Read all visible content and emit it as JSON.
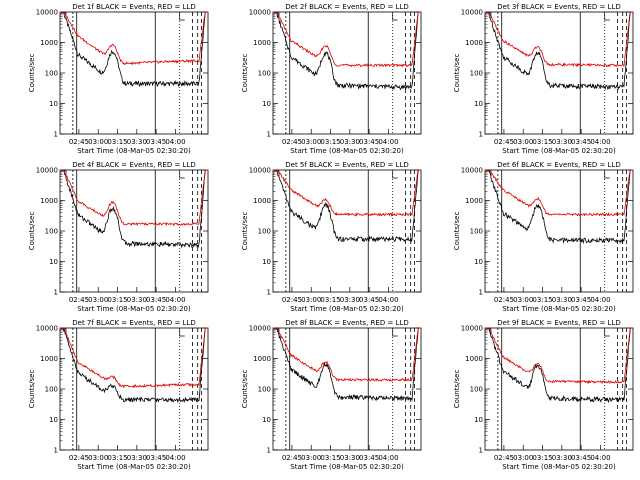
{
  "layout_note": "",
  "colors": {
    "events": "#000000",
    "lld": "#e00000",
    "axes": "#000000",
    "background": "#ffffff"
  },
  "chart_data": [
    {
      "type": "line",
      "title": "Det 1f BLACK = Events, RED = LLD",
      "xlabel": "Start Time (08-Mar-05 02:30:20)",
      "ylabel": "Counts/sec",
      "yscale": "log",
      "ylim": [
        1,
        10000
      ],
      "x_ticks": [
        "02:45",
        "03:00",
        "03:15",
        "03:30",
        "03:45",
        "04:00"
      ],
      "y_ticks": [
        "1",
        "10",
        "100",
        "1000",
        "10000"
      ],
      "series": [
        {
          "name": "Events",
          "color": "#000000",
          "profile": {
            "plateau": 80,
            "dip": 45,
            "peak": 500,
            "end": 45
          }
        },
        {
          "name": "LLD",
          "color": "#e00000",
          "profile": {
            "plateau": 330,
            "dip": 200,
            "peak": 800,
            "end": 250
          }
        }
      ]
    },
    {
      "type": "line",
      "title": "Det 2f BLACK = Events, RED = LLD",
      "xlabel": "Start Time (08-Mar-05 02:30:20)",
      "ylabel": "Counts/sec",
      "yscale": "log",
      "ylim": [
        1,
        10000
      ],
      "x_ticks": [
        "02:45",
        "03:00",
        "03:15",
        "03:30",
        "03:45",
        "04:00"
      ],
      "y_ticks": [
        "1",
        "10",
        "100",
        "1000",
        "10000"
      ],
      "series": [
        {
          "name": "Events",
          "color": "#000000",
          "profile": {
            "plateau": 70,
            "dip": 40,
            "peak": 450,
            "end": 35
          }
        },
        {
          "name": "LLD",
          "color": "#e00000",
          "profile": {
            "plateau": 230,
            "dip": 180,
            "peak": 750,
            "end": 180
          }
        }
      ]
    },
    {
      "type": "line",
      "title": "Det 3f BLACK = Events, RED = LLD",
      "xlabel": "Start Time (08-Mar-05 02:30:20)",
      "ylabel": "Counts/sec",
      "yscale": "log",
      "ylim": [
        1,
        10000
      ],
      "x_ticks": [
        "02:45",
        "03:00",
        "03:15",
        "03:30",
        "03:45",
        "04:00"
      ],
      "y_ticks": [
        "1",
        "10",
        "100",
        "1000",
        "10000"
      ],
      "series": [
        {
          "name": "Events",
          "color": "#000000",
          "profile": {
            "plateau": 70,
            "dip": 40,
            "peak": 450,
            "end": 35
          }
        },
        {
          "name": "LLD",
          "color": "#e00000",
          "profile": {
            "plateau": 230,
            "dip": 190,
            "peak": 700,
            "end": 180
          }
        }
      ]
    },
    {
      "type": "line",
      "title": "Det 4f BLACK = Events, RED = LLD",
      "xlabel": "Start Time (08-Mar-05 02:30:20)",
      "ylabel": "Counts/sec",
      "yscale": "log",
      "ylim": [
        1,
        10000
      ],
      "x_ticks": [
        "02:45",
        "03:00",
        "03:15",
        "03:30",
        "03:45",
        "04:00"
      ],
      "y_ticks": [
        "1",
        "10",
        "100",
        "1000",
        "10000"
      ],
      "series": [
        {
          "name": "Events",
          "color": "#000000",
          "profile": {
            "plateau": 70,
            "dip": 40,
            "peak": 550,
            "end": 35
          }
        },
        {
          "name": "LLD",
          "color": "#e00000",
          "profile": {
            "plateau": 190,
            "dip": 170,
            "peak": 850,
            "end": 170
          }
        }
      ]
    },
    {
      "type": "line",
      "title": "Det 5f BLACK = Events, RED = LLD",
      "xlabel": "Start Time (08-Mar-05 02:30:20)",
      "ylabel": "Counts/sec",
      "yscale": "log",
      "ylim": [
        1,
        10000
      ],
      "x_ticks": [
        "02:45",
        "03:00",
        "03:15",
        "03:30",
        "03:45",
        "04:00"
      ],
      "y_ticks": [
        "1",
        "10",
        "100",
        "1000",
        "10000"
      ],
      "series": [
        {
          "name": "Events",
          "color": "#000000",
          "profile": {
            "plateau": 90,
            "dip": 55,
            "peak": 700,
            "end": 55
          }
        },
        {
          "name": "LLD",
          "color": "#e00000",
          "profile": {
            "plateau": 450,
            "dip": 350,
            "peak": 1000,
            "end": 350
          }
        }
      ]
    },
    {
      "type": "line",
      "title": "Det 6f BLACK = Events, RED = LLD",
      "xlabel": "Start Time (08-Mar-05 02:30:20)",
      "ylabel": "Counts/sec",
      "yscale": "log",
      "ylim": [
        1,
        10000
      ],
      "x_ticks": [
        "02:45",
        "03:00",
        "03:15",
        "03:30",
        "03:45",
        "04:00"
      ],
      "y_ticks": [
        "1",
        "10",
        "100",
        "1000",
        "10000"
      ],
      "series": [
        {
          "name": "Events",
          "color": "#000000",
          "profile": {
            "plateau": 80,
            "dip": 50,
            "peak": 700,
            "end": 50
          }
        },
        {
          "name": "LLD",
          "color": "#e00000",
          "profile": {
            "plateau": 450,
            "dip": 350,
            "peak": 1100,
            "end": 350
          }
        }
      ]
    },
    {
      "type": "line",
      "title": "Det 7f BLACK = Events, RED = LLD",
      "xlabel": "Start Time (08-Mar-05 02:30:20)",
      "ylabel": "Counts/sec",
      "yscale": "log",
      "ylim": [
        1,
        10000
      ],
      "x_ticks": [
        "02:45",
        "03:00",
        "03:15",
        "03:30",
        "03:45",
        "04:00"
      ],
      "y_ticks": [
        "1",
        "10",
        "100",
        "1000",
        "10000"
      ],
      "series": [
        {
          "name": "Events",
          "color": "#000000",
          "profile": {
            "plateau": 70,
            "dip": 45,
            "peak": 120,
            "end": 45
          }
        },
        {
          "name": "LLD",
          "color": "#e00000",
          "profile": {
            "plateau": 150,
            "dip": 120,
            "peak": 230,
            "end": 140
          }
        }
      ]
    },
    {
      "type": "line",
      "title": "Det 8f BLACK = Events, RED = LLD",
      "xlabel": "Start Time (08-Mar-05 02:30:20)",
      "ylabel": "Counts/sec",
      "yscale": "log",
      "ylim": [
        1,
        10000
      ],
      "x_ticks": [
        "02:45",
        "03:00",
        "03:15",
        "03:30",
        "03:45",
        "04:00"
      ],
      "y_ticks": [
        "1",
        "10",
        "100",
        "1000",
        "10000"
      ],
      "series": [
        {
          "name": "Events",
          "color": "#000000",
          "profile": {
            "plateau": 90,
            "dip": 55,
            "peak": 650,
            "end": 50
          }
        },
        {
          "name": "LLD",
          "color": "#e00000",
          "profile": {
            "plateau": 260,
            "dip": 200,
            "peak": 750,
            "end": 200
          }
        }
      ]
    },
    {
      "type": "line",
      "title": "Det 9f BLACK = Events, RED = LLD",
      "xlabel": "Start Time (08-Mar-05 02:30:20)",
      "ylabel": "Counts/sec",
      "yscale": "log",
      "ylim": [
        1,
        10000
      ],
      "x_ticks": [
        "02:45",
        "03:00",
        "03:15",
        "03:30",
        "03:45",
        "04:00"
      ],
      "y_ticks": [
        "1",
        "10",
        "100",
        "1000",
        "10000"
      ],
      "series": [
        {
          "name": "Events",
          "color": "#000000",
          "profile": {
            "plateau": 80,
            "dip": 50,
            "peak": 600,
            "end": 45
          }
        },
        {
          "name": "LLD",
          "color": "#e00000",
          "profile": {
            "plateau": 230,
            "dip": 180,
            "peak": 650,
            "end": 170
          }
        }
      ]
    }
  ]
}
